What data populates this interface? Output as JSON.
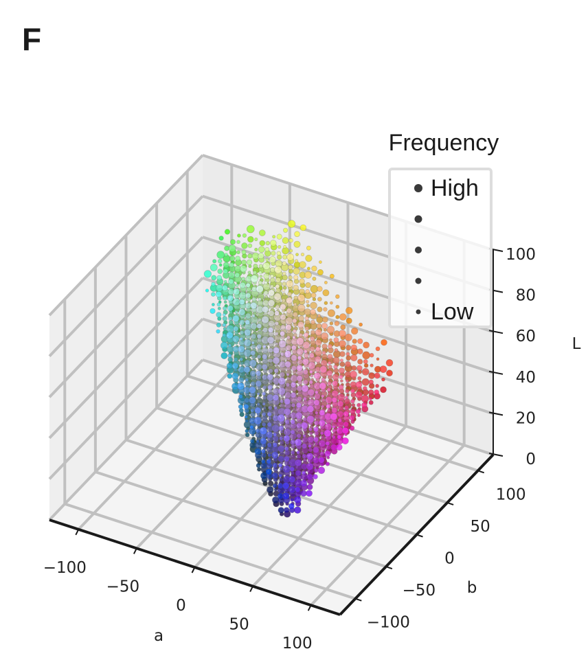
{
  "panel_label": "F",
  "chart_data": {
    "type": "scatter",
    "projection": "3d",
    "title": "",
    "xlabel": "a",
    "ylabel": "b",
    "zlabel": "L",
    "xlim": [
      -125,
      125
    ],
    "ylim": [
      -125,
      125
    ],
    "zlim": [
      0,
      100
    ],
    "xticks": [
      "−100",
      "−50",
      "0",
      "50",
      "100"
    ],
    "xtick_values": [
      -100,
      -50,
      0,
      50,
      100
    ],
    "yticks": [
      "−100",
      "−50",
      "0",
      "50",
      "100"
    ],
    "ytick_values": [
      -100,
      -50,
      0,
      50,
      100
    ],
    "zticks": [
      "0",
      "20",
      "40",
      "60",
      "80",
      "100"
    ],
    "ztick_values": [
      0,
      20,
      40,
      60,
      80,
      100
    ],
    "grid": true,
    "point_grid": {
      "L_step": 5,
      "L_min": 5,
      "L_max": 95,
      "ab_step": 10,
      "ab_min": -120,
      "ab_max": 120
    },
    "point_colour": "CIELAB to sRGB, points shown only inside sRGB gamut",
    "legend": {
      "title": "Frequency",
      "placement": "top-right",
      "entries": [
        {
          "label": "High",
          "level": 5
        },
        {
          "label": "",
          "level": 4
        },
        {
          "label": "",
          "level": 3
        },
        {
          "label": "",
          "level": 2
        },
        {
          "label": "Low",
          "level": 1
        }
      ]
    }
  },
  "colors": {
    "pane": "#f2f2f2",
    "grid": "#c0c0c0",
    "axis": "#1a1a1a",
    "legend_dot": "#3a3a3a"
  }
}
